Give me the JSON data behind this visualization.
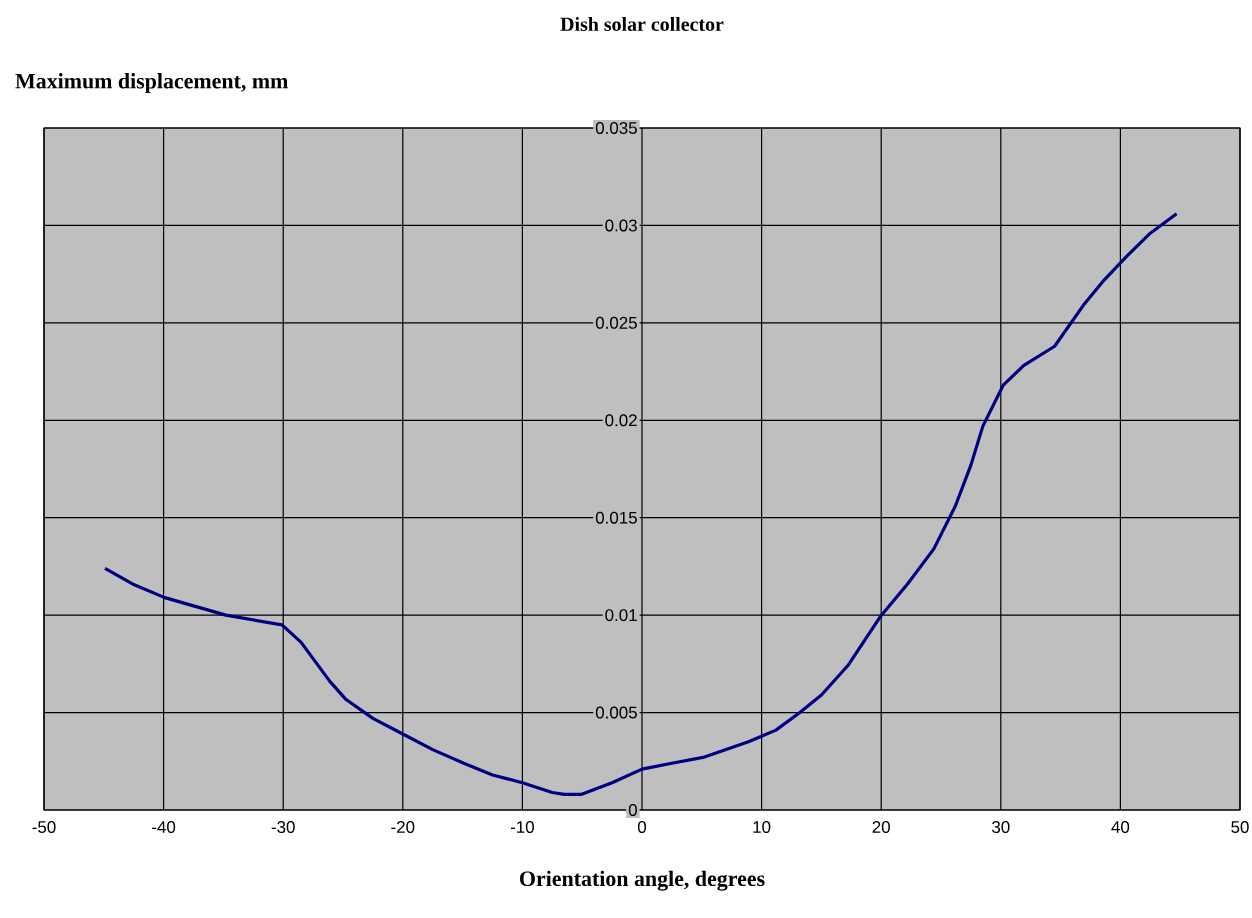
{
  "chart_data": {
    "type": "line",
    "title": "Dish solar collector",
    "xlabel": "Orientation angle, degrees",
    "ylabel": "Maximum displacement, mm",
    "x": [
      -44.9,
      -42.6,
      -39.9,
      -34.8,
      -30.1,
      -28.5,
      -26.1,
      -24.8,
      -22.5,
      -20,
      -17.5,
      -14.9,
      -12.5,
      -10,
      -7.5,
      -6.5,
      -5.1,
      -2.5,
      0,
      2.5,
      5.1,
      8.9,
      11.2,
      13.2,
      15,
      17.2,
      19.9,
      22.2,
      24.4,
      26.2,
      27.5,
      28.5,
      30.2,
      31.9,
      34.5,
      36.9,
      38.5,
      40.5,
      42.5,
      44.7
    ],
    "series": [
      {
        "color": "#000080",
        "values": [
          0.0124,
          0.0116,
          0.0109,
          0.01,
          0.0095,
          0.0086,
          0.0066,
          0.0057,
          0.0047,
          0.0039,
          0.0031,
          0.0024,
          0.0018,
          0.0014,
          0.0009,
          0.0008,
          0.0008,
          0.0014,
          0.0021,
          0.0024,
          0.0027,
          0.0035,
          0.0041,
          0.005,
          0.0059,
          0.0074,
          0.0099,
          0.0116,
          0.0134,
          0.0156,
          0.0177,
          0.0197,
          0.0218,
          0.0228,
          0.0238,
          0.0259,
          0.0271,
          0.0284,
          0.0296,
          0.0306
        ]
      }
    ],
    "xlim": [
      -50,
      50
    ],
    "ylim": [
      0,
      0.035
    ],
    "xticks": [
      -50,
      -40,
      -30,
      -20,
      -10,
      0,
      10,
      20,
      30,
      40,
      50
    ],
    "yticks": [
      0,
      0.005,
      0.01,
      0.015,
      0.02,
      0.025,
      0.03,
      0.035
    ],
    "grid": true
  }
}
